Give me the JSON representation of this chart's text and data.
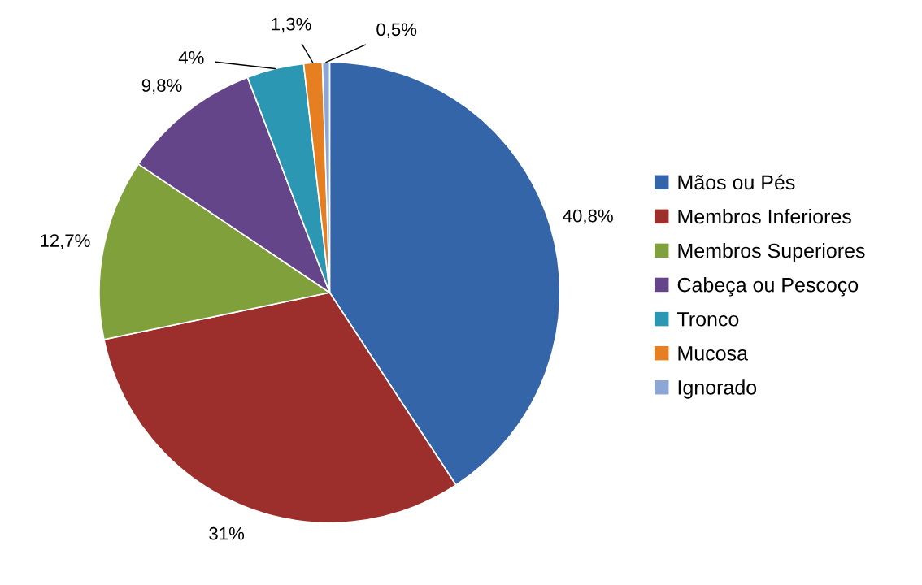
{
  "chart_data": {
    "type": "pie",
    "categories": [
      "Mãos ou Pés",
      "Membros Inferiores",
      "Membros Superiores",
      "Cabeça ou Pescoço",
      "Tronco",
      "Mucosa",
      "Ignorado"
    ],
    "values": [
      40.8,
      31,
      12.7,
      9.8,
      4,
      1.3,
      0.5
    ],
    "value_labels": [
      "40,8%",
      "31%",
      "12,7%",
      "9,8%",
      "4%",
      "1,3%",
      "0,5%"
    ],
    "colors": [
      "#3465a8",
      "#9c2f2c",
      "#7fa03a",
      "#644589",
      "#2b97b3",
      "#e67e22",
      "#8ea6d4"
    ],
    "legend": "right"
  }
}
